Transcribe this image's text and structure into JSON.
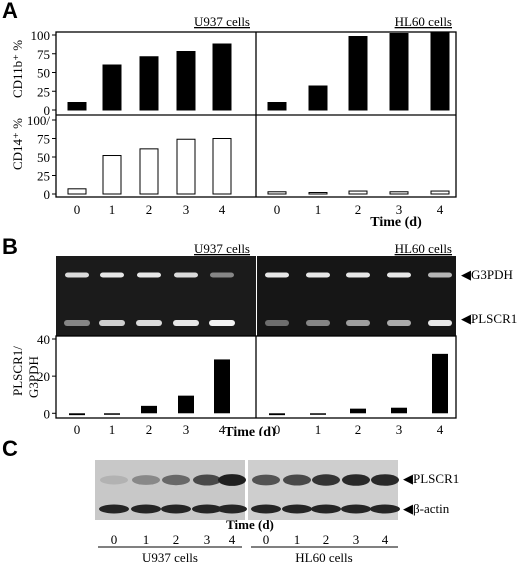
{
  "panels": {
    "a_letter": "A",
    "b_letter": "B",
    "c_letter": "C"
  },
  "chart_data": [
    {
      "type": "bar",
      "title": "U937 cells",
      "ylabel": "CD11b⁺ %",
      "categories": [
        "0",
        "1",
        "2",
        "3",
        "4"
      ],
      "values": [
        10,
        60,
        71,
        78,
        88
      ],
      "ylim": [
        0,
        100
      ],
      "yticks": [
        "0",
        "25",
        "50",
        "75",
        "100"
      ],
      "fill": "#000000"
    },
    {
      "type": "bar",
      "title": "HL60 cells",
      "ylabel": "",
      "categories": [
        "0",
        "1",
        "2",
        "3",
        "4"
      ],
      "values": [
        10,
        32,
        98,
        102,
        103
      ],
      "ylim": [
        0,
        100
      ],
      "yticks": [],
      "fill": "#000000"
    },
    {
      "type": "bar",
      "title": "",
      "ylabel": "CD14⁺ %",
      "categories": [
        "0",
        "1",
        "2",
        "3",
        "4"
      ],
      "values": [
        7,
        52,
        61,
        74,
        75
      ],
      "ylim": [
        0,
        100
      ],
      "yticks": [
        "0",
        "25",
        "50",
        "75",
        "100/"
      ],
      "fill": "#ffffff"
    },
    {
      "type": "bar",
      "title": "",
      "ylabel": "",
      "categories": [
        "0",
        "1",
        "2",
        "3",
        "4"
      ],
      "values": [
        3,
        2,
        4,
        3,
        4
      ],
      "ylim": [
        0,
        100
      ],
      "yticks": [],
      "fill": "#ffffff"
    },
    {
      "type": "bar",
      "title": "U937 cells",
      "ylabel": "PLSCR1/ G3PDH",
      "categories": [
        "0",
        "1",
        "2",
        "3",
        "4"
      ],
      "values": [
        -1,
        0,
        4,
        9.5,
        29
      ],
      "ylim": [
        -2,
        40
      ],
      "yticks": [
        "0",
        "20",
        "40"
      ],
      "fill": "#000000"
    },
    {
      "type": "bar",
      "title": "HL60 cells",
      "ylabel": "",
      "categories": [
        "0",
        "1",
        "2",
        "3",
        "4"
      ],
      "values": [
        -1,
        0,
        2.5,
        3,
        32
      ],
      "ylim": [
        -2,
        40
      ],
      "yticks": [],
      "fill": "#000000"
    }
  ],
  "axis": {
    "time_label": "Time (d)"
  },
  "gel_b": {
    "markers": [
      "◀G3PDH",
      "◀PLSCR1"
    ],
    "u937_band_top": [
      0.9,
      0.95,
      0.95,
      0.9,
      0.55
    ],
    "u937_band_bottom": [
      0.55,
      0.85,
      0.9,
      0.95,
      1.0
    ],
    "hl60_band_top": [
      0.95,
      0.95,
      0.95,
      0.95,
      0.75
    ],
    "hl60_band_bottom": [
      0.45,
      0.55,
      0.65,
      0.7,
      0.95
    ]
  },
  "blot_c": {
    "markers": [
      "◀PLSCR1",
      "◀β-actin"
    ],
    "time_label": "Time (d)",
    "u937_lanes": [
      "0",
      "1",
      "2",
      "3",
      "4"
    ],
    "hl60_lanes": [
      "0",
      "1",
      "2",
      "3",
      "4"
    ],
    "u937_group": "U937   cells",
    "hl60_group": "HL60   cells",
    "u937_plscr1": [
      0.25,
      0.45,
      0.6,
      0.75,
      0.95
    ],
    "hl60_plscr1": [
      0.7,
      0.75,
      0.85,
      0.9,
      0.9
    ]
  }
}
